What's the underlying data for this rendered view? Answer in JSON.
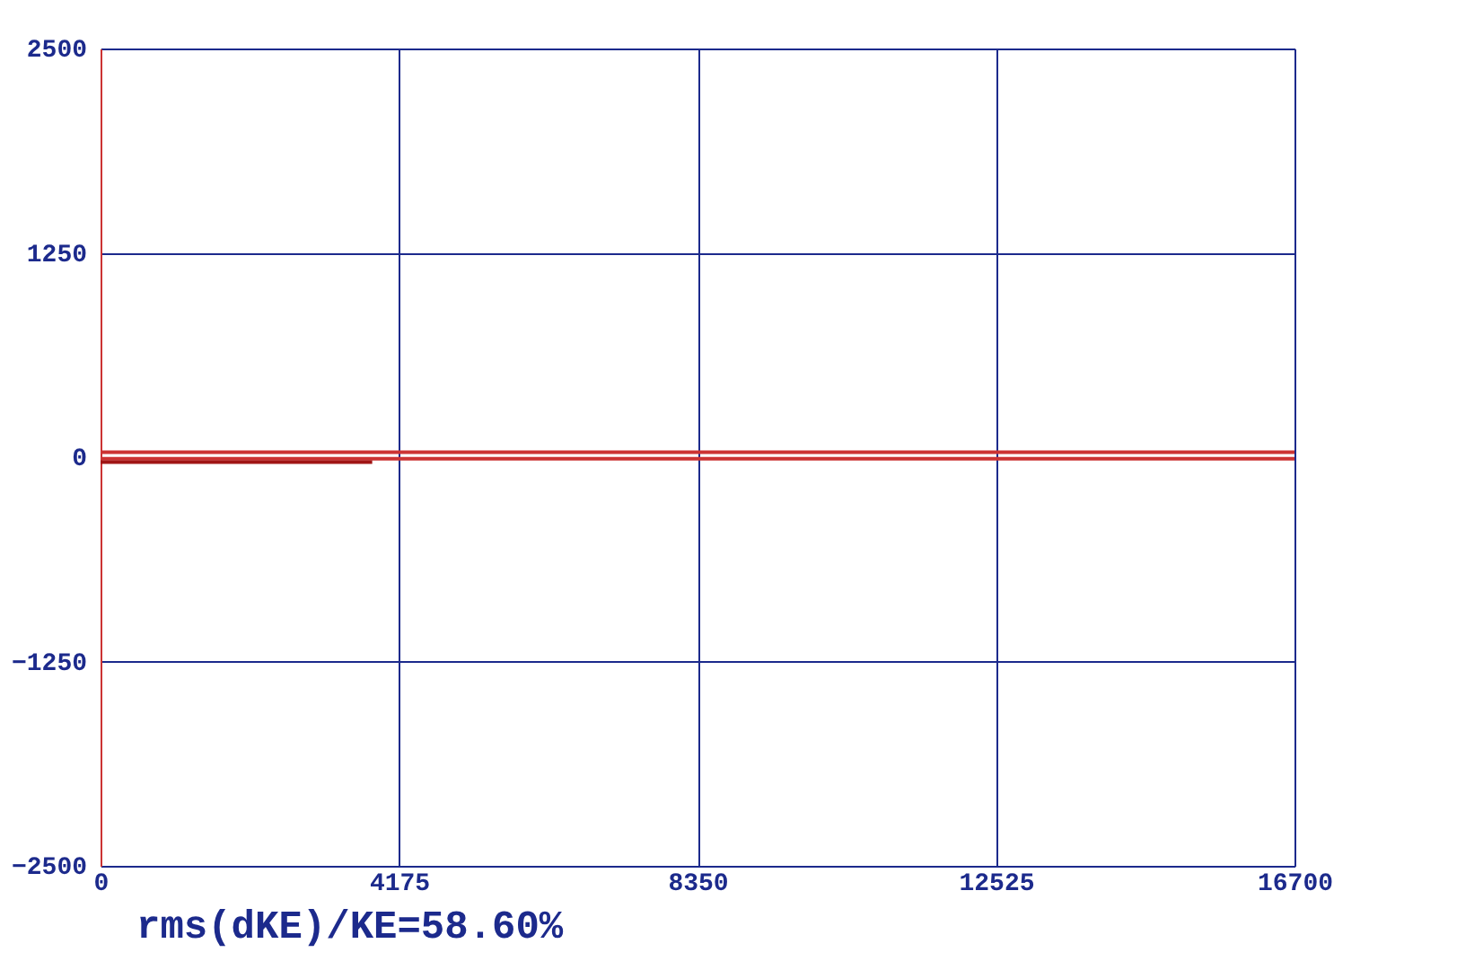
{
  "chart_data": {
    "type": "line",
    "annotations": [
      "rms(dKE)/KE=58.60%"
    ],
    "series": [
      {
        "color": "#cc3333",
        "x": [
          0,
          16700
        ],
        "values": [
          30,
          30
        ]
      },
      {
        "color": "#cc3333",
        "x": [
          0,
          16700
        ],
        "values": [
          -10,
          -10
        ]
      },
      {
        "color": "#a01515",
        "x": [
          0,
          3800
        ],
        "values": [
          -30,
          -30
        ]
      }
    ],
    "xlim": [
      0,
      16700
    ],
    "xticks": [
      0,
      4175,
      8350,
      12525,
      16700
    ],
    "ylim": [
      -2500,
      2500
    ],
    "yticks": [
      -2500,
      -1250,
      0,
      1250,
      2500
    ],
    "grid": true,
    "legend": false,
    "marker": "none",
    "line_style": "solid"
  }
}
